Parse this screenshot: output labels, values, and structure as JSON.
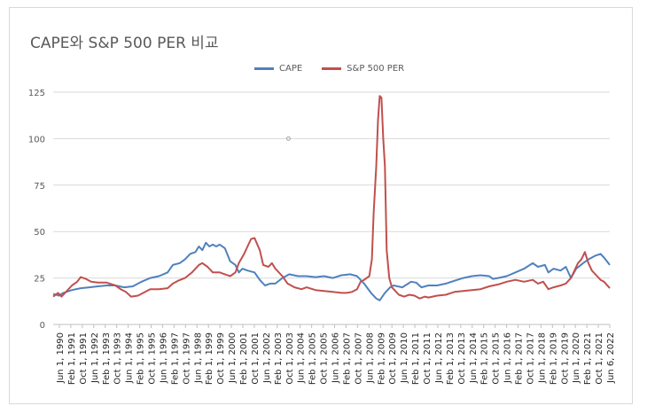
{
  "chart_data": {
    "type": "line",
    "title": "CAPE와 S&P 500 PER 비교",
    "xlabel": "",
    "ylabel": "",
    "ylim": [
      0,
      125
    ],
    "yticks": [
      0,
      25,
      50,
      75,
      100,
      125
    ],
    "grid": true,
    "legend_position": "top",
    "x_start_month": "1990-06",
    "x_end_month": "2022-06",
    "tick_labels": [
      "Jun 1, 1990",
      "Feb 1, 1991",
      "Oct 1, 1991",
      "Jun 1, 1992",
      "Feb 1, 1993",
      "Oct 1, 1993",
      "Jun 1, 1994",
      "Feb 1, 1995",
      "Oct 1, 1995",
      "Jun 1, 1996",
      "Feb 1, 1997",
      "Oct 1, 1997",
      "Jun 1, 1998",
      "Feb 1, 1999",
      "Oct 1, 1999",
      "Jun 1, 2000",
      "Feb 1, 2001",
      "Oct 1, 2001",
      "Jun 1, 2002",
      "Feb 1, 2003",
      "Oct 1, 2003",
      "Jun 1, 2004",
      "Feb 1, 2005",
      "Oct 1, 2005",
      "Jun 1, 2006",
      "Feb 1, 2007",
      "Oct 1, 2007",
      "Jun 1, 2008",
      "Feb 1, 2009",
      "Oct 1, 2009",
      "Jun 1, 2010",
      "Feb 1, 2011",
      "Oct 1, 2011",
      "Jun 1, 2012",
      "Feb 1, 2013",
      "Oct 1, 2013",
      "Jun 1, 2014",
      "Feb 1, 2015",
      "Oct 1, 2015",
      "Jun 1, 2016",
      "Feb 1, 2017",
      "Oct 1, 2017",
      "Jun 1, 2018",
      "Feb 1, 2019",
      "Oct 1, 2019",
      "Jun 1, 2020",
      "Feb 1, 2021",
      "Oct 1, 2021",
      "Jun 6, 2022"
    ],
    "series": [
      {
        "name": "CAPE",
        "color": "#4f81bd",
        "points": [
          [
            1990.42,
            16.5
          ],
          [
            1990.75,
            15.5
          ],
          [
            1991.0,
            17
          ],
          [
            1991.5,
            18.5
          ],
          [
            1992.0,
            19.5
          ],
          [
            1992.5,
            20
          ],
          [
            1993.0,
            20.5
          ],
          [
            1993.5,
            21
          ],
          [
            1994.0,
            21
          ],
          [
            1994.5,
            20
          ],
          [
            1995.0,
            20.5
          ],
          [
            1995.5,
            23
          ],
          [
            1996.0,
            25
          ],
          [
            1996.5,
            26
          ],
          [
            1997.0,
            28
          ],
          [
            1997.3,
            32
          ],
          [
            1997.7,
            33
          ],
          [
            1998.0,
            35
          ],
          [
            1998.3,
            38
          ],
          [
            1998.6,
            39
          ],
          [
            1998.8,
            42
          ],
          [
            1999.0,
            40
          ],
          [
            1999.2,
            44
          ],
          [
            1999.4,
            42
          ],
          [
            1999.6,
            43
          ],
          [
            1999.8,
            42
          ],
          [
            2000.0,
            43
          ],
          [
            2000.3,
            41
          ],
          [
            2000.6,
            34
          ],
          [
            2000.9,
            32
          ],
          [
            2001.1,
            28
          ],
          [
            2001.3,
            30
          ],
          [
            2001.6,
            29
          ],
          [
            2002.0,
            28
          ],
          [
            2002.3,
            24
          ],
          [
            2002.6,
            21
          ],
          [
            2002.9,
            22
          ],
          [
            2003.2,
            22
          ],
          [
            2003.6,
            25
          ],
          [
            2004.0,
            27
          ],
          [
            2004.5,
            26
          ],
          [
            2005.0,
            26
          ],
          [
            2005.5,
            25.5
          ],
          [
            2006.0,
            26
          ],
          [
            2006.5,
            25
          ],
          [
            2007.0,
            26.5
          ],
          [
            2007.5,
            27
          ],
          [
            2007.9,
            26
          ],
          [
            2008.3,
            22
          ],
          [
            2008.7,
            17
          ],
          [
            2009.0,
            14
          ],
          [
            2009.2,
            13
          ],
          [
            2009.5,
            17
          ],
          [
            2009.8,
            20
          ],
          [
            2010.0,
            21
          ],
          [
            2010.5,
            20
          ],
          [
            2011.0,
            23
          ],
          [
            2011.3,
            22.5
          ],
          [
            2011.6,
            20
          ],
          [
            2012.0,
            21
          ],
          [
            2012.5,
            21
          ],
          [
            2013.0,
            22
          ],
          [
            2013.5,
            23.5
          ],
          [
            2014.0,
            25
          ],
          [
            2014.5,
            26
          ],
          [
            2015.0,
            26.5
          ],
          [
            2015.5,
            26
          ],
          [
            2015.7,
            24.5
          ],
          [
            2016.0,
            25
          ],
          [
            2016.5,
            26
          ],
          [
            2017.0,
            28
          ],
          [
            2017.5,
            30
          ],
          [
            2018.0,
            33
          ],
          [
            2018.3,
            31
          ],
          [
            2018.7,
            32
          ],
          [
            2018.9,
            28
          ],
          [
            2019.2,
            30
          ],
          [
            2019.6,
            29
          ],
          [
            2019.9,
            31
          ],
          [
            2020.2,
            25
          ],
          [
            2020.5,
            30
          ],
          [
            2020.9,
            33
          ],
          [
            2021.2,
            35
          ],
          [
            2021.6,
            37
          ],
          [
            2021.9,
            38
          ],
          [
            2022.1,
            36
          ],
          [
            2022.43,
            32
          ]
        ]
      },
      {
        "name": "S&P 500 PER",
        "color": "#c0504d",
        "points": [
          [
            1990.42,
            15
          ],
          [
            1990.7,
            17
          ],
          [
            1990.9,
            15
          ],
          [
            1991.2,
            18
          ],
          [
            1991.5,
            21
          ],
          [
            1991.8,
            23
          ],
          [
            1992.0,
            25.5
          ],
          [
            1992.3,
            24.5
          ],
          [
            1992.6,
            23
          ],
          [
            1993.0,
            22.5
          ],
          [
            1993.5,
            22.5
          ],
          [
            1994.0,
            21
          ],
          [
            1994.3,
            19
          ],
          [
            1994.6,
            17.5
          ],
          [
            1994.9,
            15
          ],
          [
            1995.3,
            15.5
          ],
          [
            1995.6,
            17
          ],
          [
            1996.0,
            19
          ],
          [
            1996.5,
            19
          ],
          [
            1997.0,
            19.5
          ],
          [
            1997.3,
            22
          ],
          [
            1997.6,
            23.5
          ],
          [
            1998.0,
            25
          ],
          [
            1998.4,
            28
          ],
          [
            1998.8,
            32
          ],
          [
            1999.0,
            33
          ],
          [
            1999.3,
            31
          ],
          [
            1999.6,
            28
          ],
          [
            2000.0,
            28
          ],
          [
            2000.3,
            27
          ],
          [
            2000.6,
            26
          ],
          [
            2000.9,
            28
          ],
          [
            2001.1,
            33
          ],
          [
            2001.4,
            38
          ],
          [
            2001.6,
            42
          ],
          [
            2001.8,
            46
          ],
          [
            2002.0,
            46.5
          ],
          [
            2002.3,
            40
          ],
          [
            2002.5,
            32
          ],
          [
            2002.8,
            31
          ],
          [
            2003.0,
            33
          ],
          [
            2003.2,
            30
          ],
          [
            2003.6,
            26
          ],
          [
            2003.9,
            22
          ],
          [
            2004.3,
            20
          ],
          [
            2004.7,
            19
          ],
          [
            2005.0,
            20
          ],
          [
            2005.5,
            18.5
          ],
          [
            2006.0,
            18
          ],
          [
            2006.5,
            17.5
          ],
          [
            2007.0,
            17
          ],
          [
            2007.3,
            17
          ],
          [
            2007.6,
            17.5
          ],
          [
            2007.9,
            19
          ],
          [
            2008.1,
            23
          ],
          [
            2008.3,
            24
          ],
          [
            2008.6,
            26
          ],
          [
            2008.75,
            35
          ],
          [
            2008.85,
            60
          ],
          [
            2009.0,
            85
          ],
          [
            2009.1,
            110
          ],
          [
            2009.2,
            123
          ],
          [
            2009.3,
            122
          ],
          [
            2009.4,
            100
          ],
          [
            2009.5,
            85
          ],
          [
            2009.6,
            40
          ],
          [
            2009.75,
            25
          ],
          [
            2009.9,
            20
          ],
          [
            2010.1,
            18
          ],
          [
            2010.3,
            16
          ],
          [
            2010.6,
            15
          ],
          [
            2010.9,
            16
          ],
          [
            2011.2,
            15.5
          ],
          [
            2011.5,
            14
          ],
          [
            2011.8,
            15
          ],
          [
            2012.0,
            14.5
          ],
          [
            2012.5,
            15.5
          ],
          [
            2013.0,
            16
          ],
          [
            2013.5,
            17.5
          ],
          [
            2014.0,
            18
          ],
          [
            2014.5,
            18.5
          ],
          [
            2015.0,
            19
          ],
          [
            2015.5,
            20.5
          ],
          [
            2016.0,
            21.5
          ],
          [
            2016.5,
            23
          ],
          [
            2017.0,
            24
          ],
          [
            2017.5,
            23
          ],
          [
            2018.0,
            24
          ],
          [
            2018.3,
            22
          ],
          [
            2018.6,
            23
          ],
          [
            2018.9,
            19
          ],
          [
            2019.2,
            20
          ],
          [
            2019.6,
            21
          ],
          [
            2019.9,
            22
          ],
          [
            2020.2,
            25
          ],
          [
            2020.4,
            29
          ],
          [
            2020.6,
            33
          ],
          [
            2020.8,
            35
          ],
          [
            2021.0,
            39
          ],
          [
            2021.2,
            33
          ],
          [
            2021.4,
            29
          ],
          [
            2021.7,
            26
          ],
          [
            2021.9,
            24
          ],
          [
            2022.1,
            23
          ],
          [
            2022.43,
            19.5
          ]
        ]
      }
    ]
  }
}
